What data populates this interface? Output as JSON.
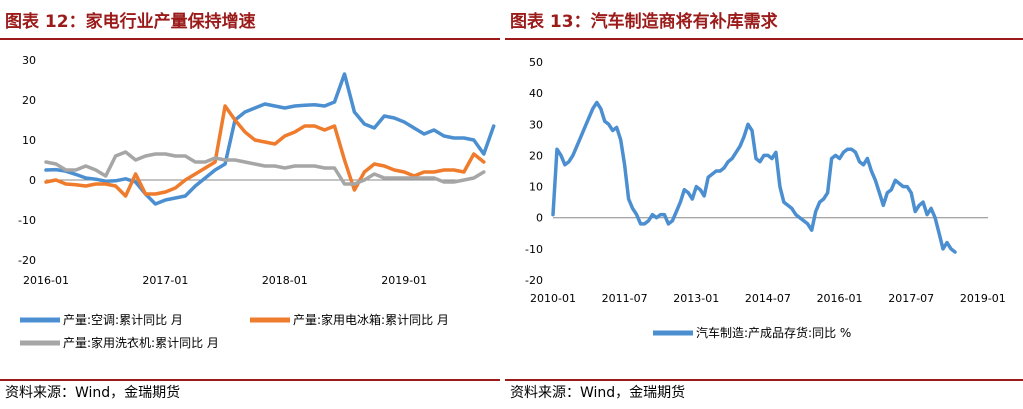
{
  "left": {
    "title": "图表 12：家电行业产量保持增速",
    "source": "资料来源：Wind，金瑞期货"
  },
  "right": {
    "title": "图表 13：汽车制造商将有补库需求",
    "source": "资料来源：Wind，金瑞期货"
  },
  "colors": {
    "accent": "#9b1b1b",
    "blue": "#4b8fd1",
    "orange": "#ef7b2c",
    "gray": "#a6a6a6"
  },
  "chart_data": [
    {
      "type": "line",
      "title": "",
      "xlabel": "",
      "ylabel": "",
      "ylim": [
        -20,
        30
      ],
      "yticks": [
        "30",
        "20",
        "10",
        "0",
        "-10",
        "-20"
      ],
      "x_start": "2016-01",
      "x_ticks": [
        "2016-01",
        "2017-01",
        "2018-01",
        "2019-01"
      ],
      "grid": false,
      "legend": "bottom",
      "series": [
        {
          "name": "产量:空调:累计同比 月",
          "color": "#4b8fd1",
          "values": [
            2.5,
            2.6,
            2.2,
            1.4,
            0.5,
            0.2,
            -0.3,
            -0.2,
            0.3,
            -0.5,
            -3.5,
            -6.0,
            -5.0,
            -4.5,
            -4.0,
            -1.5,
            0.5,
            2.5,
            4.0,
            15.0,
            17.0,
            18.0,
            19.0,
            18.5,
            18.0,
            18.5,
            18.7,
            18.8,
            18.5,
            19.5,
            26.5,
            17.0,
            14.0,
            13.0,
            16.0,
            15.5,
            14.5,
            13.0,
            11.5,
            12.5,
            11.0,
            10.5,
            10.5,
            10.0,
            6.5,
            13.5
          ]
        },
        {
          "name": "产量:家用电冰箱:累计同比 月",
          "color": "#ef7b2c",
          "values": [
            -0.5,
            0.0,
            -1.0,
            -1.2,
            -1.5,
            -1.0,
            -1.0,
            -1.5,
            -4.0,
            1.5,
            -3.5,
            -3.5,
            -3.0,
            -2.0,
            0.0,
            1.5,
            3.0,
            4.5,
            18.5,
            15.0,
            12.0,
            10.0,
            9.5,
            9.0,
            11.0,
            12.0,
            13.5,
            13.5,
            12.5,
            13.5,
            5.0,
            -2.5,
            2.0,
            4.0,
            3.5,
            2.5,
            2.0,
            1.0,
            2.0,
            2.0,
            2.5,
            2.5,
            2.0,
            6.5,
            4.5
          ]
        },
        {
          "name": "产量:家用洗衣机:累计同比 月",
          "color": "#a6a6a6",
          "values": [
            4.5,
            4.0,
            2.5,
            2.5,
            3.5,
            2.5,
            1.0,
            6.0,
            7.0,
            5.0,
            6.0,
            6.5,
            6.5,
            6.0,
            6.0,
            4.5,
            4.5,
            5.5,
            5.0,
            5.0,
            4.5,
            4.0,
            3.5,
            3.5,
            3.0,
            3.5,
            3.5,
            3.5,
            3.0,
            3.0,
            -1.0,
            -1.0,
            0.0,
            1.5,
            0.5,
            0.5,
            0.5,
            0.5,
            0.5,
            0.5,
            -0.5,
            -0.5,
            0.0,
            0.5,
            2.0
          ]
        }
      ]
    },
    {
      "type": "line",
      "title": "",
      "xlabel": "",
      "ylabel": "",
      "ylim": [
        -20,
        50
      ],
      "yticks": [
        "50",
        "40",
        "30",
        "20",
        "10",
        "0",
        "-10",
        "-20"
      ],
      "x_start": "2010-01",
      "x_ticks": [
        "2010-01",
        "2011-07",
        "2013-01",
        "2014-07",
        "2016-01",
        "2017-07",
        "2019-01"
      ],
      "grid": false,
      "legend": "bottom",
      "series": [
        {
          "name": "汽车制造:产成品存货:同比 %",
          "color": "#4b8fd1",
          "values": [
            1,
            22,
            20,
            17,
            18,
            20,
            23,
            26,
            29,
            32,
            35,
            37,
            35,
            31,
            30,
            28,
            29,
            25,
            17,
            6,
            3,
            1,
            -2,
            -2,
            -1,
            1,
            0,
            1,
            1,
            -2,
            -1,
            2,
            5,
            9,
            8,
            6,
            10,
            9,
            7,
            13,
            14,
            15,
            15,
            16,
            18,
            19,
            21,
            23,
            26,
            30,
            28,
            19,
            18,
            20,
            20,
            19,
            21,
            10,
            5,
            4,
            3,
            1,
            0,
            -1,
            -2,
            -4,
            2,
            5,
            6,
            8,
            19,
            20,
            19,
            21,
            22,
            22,
            21,
            18,
            17,
            19,
            15,
            12,
            8,
            4,
            8,
            9,
            12,
            11,
            10,
            10,
            8,
            2,
            4,
            5,
            1,
            3,
            0,
            -5,
            -10,
            -8,
            -10,
            -11
          ]
        }
      ]
    }
  ]
}
